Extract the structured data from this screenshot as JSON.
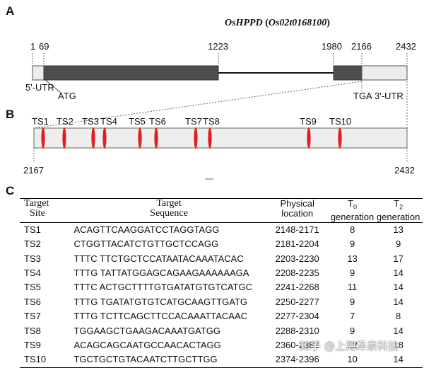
{
  "panels": {
    "a": "A",
    "b": "B",
    "c": "C"
  },
  "gene_title": "OsHPPD (Os02t0168100)",
  "gene_model": {
    "coords": [
      "1",
      "69",
      "1223",
      "1980",
      "2166",
      "2432"
    ],
    "utr5_label": "5'-UTR",
    "atg_label": "ATG",
    "tga_label": "TGA",
    "utr3_label": "3'-UTR"
  },
  "zoom_bar": {
    "start": "2167",
    "end": "2432",
    "sites": [
      "TS1",
      "TS2",
      "TS3",
      "TS4",
      "TS5",
      "TS6",
      "TS7",
      "TS8",
      "TS9",
      "TS10"
    ]
  },
  "table": {
    "headers": {
      "site_line1": "Target",
      "site_line2": "Site",
      "seq_line1": "Target",
      "seq_line2": "Sequence",
      "loc_line1": "Physical",
      "loc_line2": "location",
      "t0_base": "T",
      "t0_sub": "0",
      "t0_line2": "generation",
      "t2_base": "T",
      "t2_sub": "2",
      "t2_line2": "generation"
    },
    "rows": [
      {
        "site": "TS1",
        "seq": "ACAGTTCAAGGATCCTAGGTAGG",
        "loc": "2148-2171",
        "t0": "8",
        "t2": "13"
      },
      {
        "site": "TS2",
        "seq": "CTGGTTACATCTGTTGCTCCAGG",
        "loc": "2181-2204",
        "t0": "9",
        "t2": "9"
      },
      {
        "site": "TS3",
        "seq": "TTTC TTCTGCTCCATAATACAAATACAC",
        "loc": "2203-2230",
        "t0": "13",
        "t2": "17"
      },
      {
        "site": "TS4",
        "seq": "TTTG TATTATGGAGCAGAAGAAAAAAGA",
        "loc": "2208-2235",
        "t0": "9",
        "t2": "14"
      },
      {
        "site": "TS5",
        "seq": "TTTC ACTGCTTTTGTGATATGTGTCATGC",
        "loc": "2241-2268",
        "t0": "11",
        "t2": "14"
      },
      {
        "site": "TS6",
        "seq": "TTTG TGATATGTGTCATGCAAGTTGATG",
        "loc": "2250-2277",
        "t0": "9",
        "t2": "14"
      },
      {
        "site": "TS7",
        "seq": "TTTG TCTTCAGCTTCCACAAATTACAAC",
        "loc": "2277-2304",
        "t0": "7",
        "t2": "8"
      },
      {
        "site": "TS8",
        "seq": "TGGAAGCTGAAGACAAATGATGG",
        "loc": "2288-2310",
        "t0": "9",
        "t2": "14"
      },
      {
        "site": "TS9",
        "seq": "ACAGCAGCAATGCCAACACTAGG",
        "loc": "2360-2382",
        "t0": "12",
        "t2": "18"
      },
      {
        "site": "TS10",
        "seq": "TGCTGCTGTACAATCTTGCTTGG",
        "loc": "2374-2396",
        "t0": "10",
        "t2": "14"
      }
    ]
  },
  "watermark": "知乎 @上海泽泉科技",
  "colors": {
    "exon": "#4d4d4d",
    "utr": "#ececec",
    "site_mark": "#e02020",
    "zoom_bar": "#eeeeee"
  }
}
